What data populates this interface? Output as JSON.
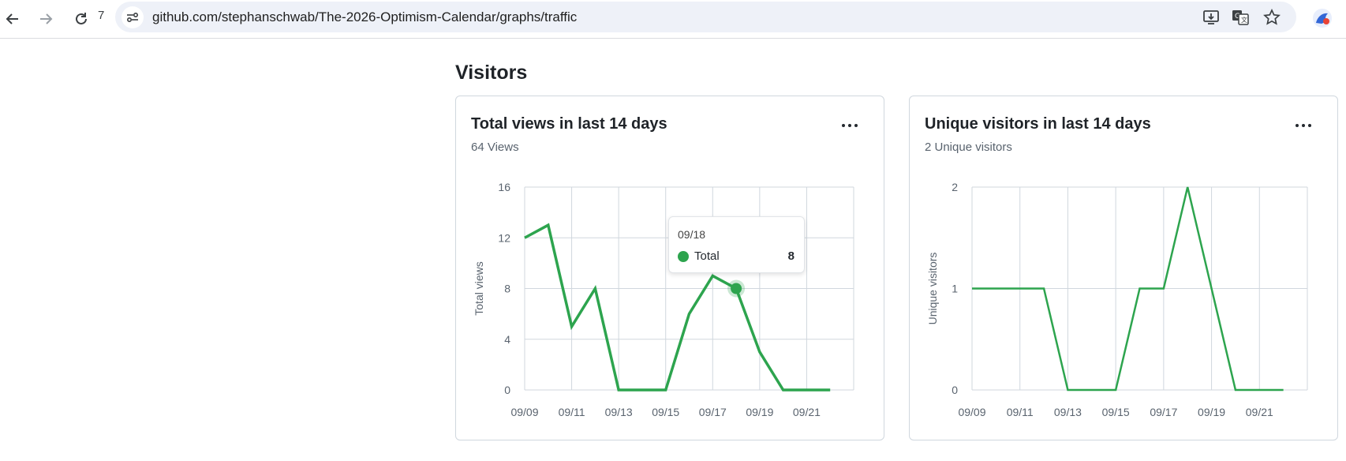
{
  "browser": {
    "tab_count": "7",
    "url": "github.com/stephanschwab/The-2026-Optimism-Calendar/graphs/traffic"
  },
  "page": {
    "section_title": "Visitors"
  },
  "colors": {
    "accent": "#2da44e",
    "grid": "#d0d7de",
    "axis_text": "#59636e"
  },
  "cards": [
    {
      "title": "Total views in last 14 days",
      "subtitle": "64 Views",
      "more_label": "..."
    },
    {
      "title": "Unique visitors in last 14 days",
      "subtitle": "2 Unique visitors",
      "more_label": "..."
    }
  ],
  "tooltip": {
    "date": "09/18",
    "series": "Total",
    "value": "8"
  },
  "chart_data": [
    {
      "type": "line",
      "x": [
        "09/09",
        "09/10",
        "09/11",
        "09/12",
        "09/13",
        "09/14",
        "09/15",
        "09/16",
        "09/17",
        "09/18",
        "09/19",
        "09/20",
        "09/21",
        "09/22"
      ],
      "xticks": [
        "09/09",
        "09/11",
        "09/13",
        "09/15",
        "09/17",
        "09/19",
        "09/21"
      ],
      "series": [
        {
          "values": [
            12,
            13,
            5,
            8,
            0,
            0,
            0,
            6,
            9,
            8,
            3,
            0,
            0,
            0
          ]
        }
      ],
      "ylabel": "Total views",
      "ylim": [
        0,
        16
      ],
      "yticks": [
        0,
        4,
        8,
        12,
        16
      ],
      "grid": true,
      "highlight_index": 9
    },
    {
      "type": "line",
      "x": [
        "09/09",
        "09/10",
        "09/11",
        "09/12",
        "09/13",
        "09/14",
        "09/15",
        "09/16",
        "09/17",
        "09/18",
        "09/19",
        "09/20",
        "09/21",
        "09/22"
      ],
      "xticks": [
        "09/09",
        "09/11",
        "09/13",
        "09/15",
        "09/17",
        "09/19",
        "09/21"
      ],
      "series": [
        {
          "values": [
            1,
            1,
            1,
            1,
            0,
            0,
            0,
            1,
            1,
            2,
            1,
            0,
            0,
            0
          ]
        }
      ],
      "ylabel": "Unique visitors",
      "ylim": [
        0,
        2
      ],
      "yticks": [
        0,
        1,
        2
      ],
      "grid": true
    }
  ]
}
